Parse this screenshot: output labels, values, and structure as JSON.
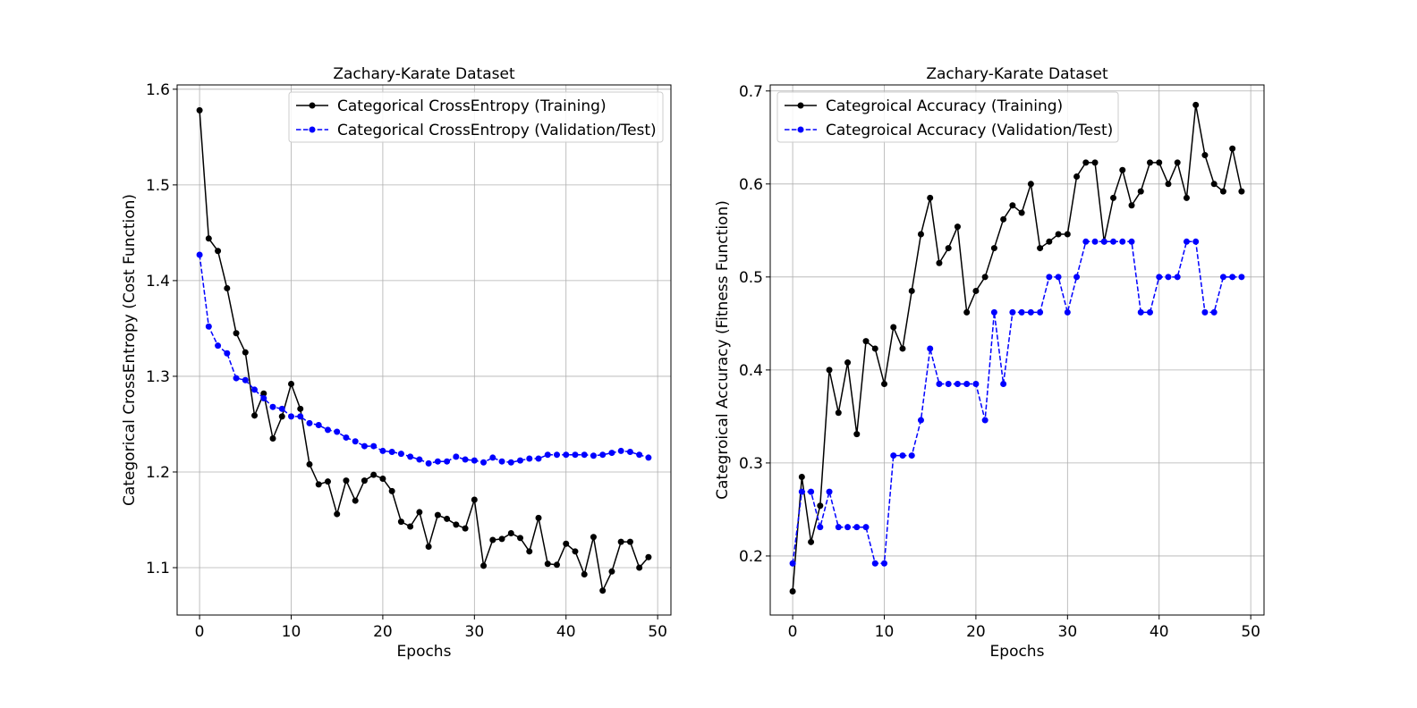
{
  "chart_data": [
    {
      "type": "line",
      "title": "Zachary-Karate Dataset",
      "xlabel": "Epochs",
      "ylabel": "Categorical CrossEntropy (Cost Function)",
      "xlim": [
        -2.45,
        51.45
      ],
      "ylim": [
        1.0505,
        1.6045
      ],
      "xticks": [
        0,
        10,
        20,
        30,
        40,
        50
      ],
      "yticks": [
        1.1,
        1.2,
        1.3,
        1.4,
        1.5,
        1.6
      ],
      "grid": true,
      "legend_position": "top-right",
      "x": [
        0,
        1,
        2,
        3,
        4,
        5,
        6,
        7,
        8,
        9,
        10,
        11,
        12,
        13,
        14,
        15,
        16,
        17,
        18,
        19,
        20,
        21,
        22,
        23,
        24,
        25,
        26,
        27,
        28,
        29,
        30,
        31,
        32,
        33,
        34,
        35,
        36,
        37,
        38,
        39,
        40,
        41,
        42,
        43,
        44,
        45,
        46,
        47,
        48,
        49
      ],
      "series": [
        {
          "name": "Categorical CrossEntropy (Training)",
          "color": "#000000",
          "line_style": "solid",
          "marker": "circle",
          "values": [
            1.578,
            1.444,
            1.431,
            1.392,
            1.345,
            1.325,
            1.259,
            1.282,
            1.235,
            1.258,
            1.292,
            1.266,
            1.208,
            1.187,
            1.19,
            1.156,
            1.191,
            1.17,
            1.191,
            1.197,
            1.193,
            1.18,
            1.148,
            1.143,
            1.158,
            1.122,
            1.155,
            1.151,
            1.145,
            1.141,
            1.171,
            1.102,
            1.129,
            1.13,
            1.136,
            1.131,
            1.117,
            1.152,
            1.104,
            1.103,
            1.125,
            1.117,
            1.093,
            1.132,
            1.076,
            1.096,
            1.127,
            1.127,
            1.1,
            1.111
          ]
        },
        {
          "name": "Categorical CrossEntropy (Validation/Test)",
          "color": "#0000ff",
          "line_style": "dashed",
          "marker": "circle",
          "values": [
            1.427,
            1.352,
            1.332,
            1.324,
            1.298,
            1.296,
            1.286,
            1.277,
            1.268,
            1.266,
            1.258,
            1.258,
            1.251,
            1.249,
            1.244,
            1.242,
            1.236,
            1.232,
            1.227,
            1.227,
            1.222,
            1.221,
            1.219,
            1.216,
            1.213,
            1.209,
            1.211,
            1.211,
            1.216,
            1.213,
            1.212,
            1.21,
            1.215,
            1.211,
            1.21,
            1.212,
            1.214,
            1.214,
            1.218,
            1.218,
            1.218,
            1.218,
            1.218,
            1.217,
            1.218,
            1.22,
            1.222,
            1.221,
            1.218,
            1.215
          ]
        }
      ]
    },
    {
      "type": "line",
      "title": "Zachary-Karate Dataset",
      "xlabel": "Epochs",
      "ylabel": "Categroical Accuracy (Fitness Function)",
      "xlim": [
        -2.45,
        51.45
      ],
      "ylim": [
        0.1365,
        0.7065
      ],
      "xticks": [
        0,
        10,
        20,
        30,
        40,
        50
      ],
      "yticks": [
        0.2,
        0.3,
        0.4,
        0.5,
        0.6,
        0.7
      ],
      "grid": true,
      "legend_position": "top-left",
      "x": [
        0,
        1,
        2,
        3,
        4,
        5,
        6,
        7,
        8,
        9,
        10,
        11,
        12,
        13,
        14,
        15,
        16,
        17,
        18,
        19,
        20,
        21,
        22,
        23,
        24,
        25,
        26,
        27,
        28,
        29,
        30,
        31,
        32,
        33,
        34,
        35,
        36,
        37,
        38,
        39,
        40,
        41,
        42,
        43,
        44,
        45,
        46,
        47,
        48,
        49
      ],
      "series": [
        {
          "name": "Categroical Accuracy (Training)",
          "color": "#000000",
          "line_style": "solid",
          "marker": "circle",
          "values": [
            0.162,
            0.285,
            0.215,
            0.254,
            0.4,
            0.354,
            0.408,
            0.331,
            0.431,
            0.423,
            0.385,
            0.446,
            0.423,
            0.485,
            0.546,
            0.585,
            0.515,
            0.531,
            0.554,
            0.462,
            0.485,
            0.5,
            0.531,
            0.562,
            0.577,
            0.569,
            0.6,
            0.531,
            0.538,
            0.546,
            0.546,
            0.608,
            0.623,
            0.623,
            0.538,
            0.585,
            0.615,
            0.577,
            0.592,
            0.623,
            0.623,
            0.6,
            0.623,
            0.585,
            0.685,
            0.631,
            0.6,
            0.592,
            0.638,
            0.592
          ]
        },
        {
          "name": "Categroical Accuracy (Validation/Test)",
          "color": "#0000ff",
          "line_style": "dashed",
          "marker": "circle",
          "values": [
            0.192,
            0.269,
            0.269,
            0.231,
            0.269,
            0.231,
            0.231,
            0.231,
            0.231,
            0.192,
            0.192,
            0.308,
            0.308,
            0.308,
            0.346,
            0.423,
            0.385,
            0.385,
            0.385,
            0.385,
            0.385,
            0.346,
            0.462,
            0.385,
            0.462,
            0.462,
            0.462,
            0.462,
            0.5,
            0.5,
            0.462,
            0.5,
            0.538,
            0.538,
            0.538,
            0.538,
            0.538,
            0.538,
            0.462,
            0.462,
            0.5,
            0.5,
            0.5,
            0.538,
            0.538,
            0.462,
            0.462,
            0.5,
            0.5,
            0.5
          ]
        }
      ]
    }
  ]
}
